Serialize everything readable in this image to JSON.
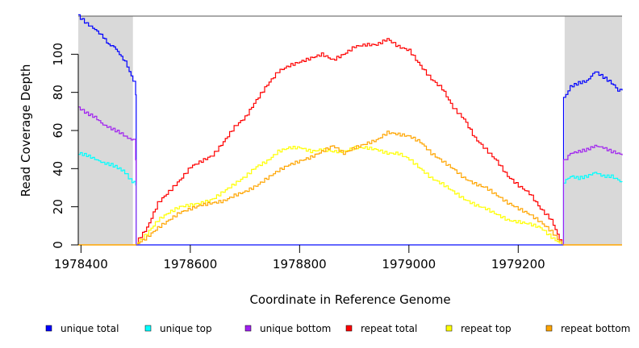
{
  "chart_data": {
    "type": "line",
    "xlabel": "Coordinate in Reference Genome",
    "ylabel": "Read Coverage Depth",
    "xlim": [
      1978395,
      1979390
    ],
    "ylim": [
      0,
      120
    ],
    "x_ticks": [
      1978400,
      1978600,
      1978800,
      1979000,
      1979200
    ],
    "y_ticks": [
      0,
      20,
      40,
      60,
      80,
      100
    ],
    "shaded_regions": [
      [
        1978395,
        1978495
      ],
      [
        1979285,
        1979390
      ]
    ],
    "legend_position": "bottom",
    "series": [
      {
        "name": "unique total",
        "color": "#0000ff",
        "points": [
          [
            1978395,
            120
          ],
          [
            1978410,
            116
          ],
          [
            1978425,
            113
          ],
          [
            1978440,
            109
          ],
          [
            1978450,
            105
          ],
          [
            1978460,
            104
          ],
          [
            1978470,
            100
          ],
          [
            1978480,
            96
          ],
          [
            1978488,
            91
          ],
          [
            1978495,
            86
          ],
          [
            1978500,
            78
          ],
          [
            1978501,
            0
          ],
          [
            1979282,
            0
          ],
          [
            1979283,
            77
          ],
          [
            1979295,
            83
          ],
          [
            1979310,
            85
          ],
          [
            1979325,
            86
          ],
          [
            1979340,
            91
          ],
          [
            1979355,
            88
          ],
          [
            1979370,
            85
          ],
          [
            1979382,
            81
          ],
          [
            1979390,
            81
          ]
        ]
      },
      {
        "name": "unique top",
        "color": "#00ffff",
        "points": [
          [
            1978395,
            48
          ],
          [
            1978410,
            47
          ],
          [
            1978425,
            45
          ],
          [
            1978440,
            43
          ],
          [
            1978455,
            42
          ],
          [
            1978470,
            40
          ],
          [
            1978480,
            38
          ],
          [
            1978490,
            34
          ],
          [
            1978500,
            32
          ],
          [
            1978501,
            0
          ],
          [
            1979282,
            0
          ],
          [
            1979283,
            33
          ],
          [
            1979295,
            36
          ],
          [
            1979310,
            35
          ],
          [
            1979325,
            36
          ],
          [
            1979340,
            38
          ],
          [
            1979355,
            36
          ],
          [
            1979370,
            36
          ],
          [
            1979382,
            34
          ],
          [
            1979390,
            33
          ]
        ]
      },
      {
        "name": "unique bottom",
        "color": "#a020f0",
        "points": [
          [
            1978395,
            72
          ],
          [
            1978410,
            69
          ],
          [
            1978425,
            67
          ],
          [
            1978440,
            63
          ],
          [
            1978455,
            61
          ],
          [
            1978470,
            59
          ],
          [
            1978485,
            56
          ],
          [
            1978495,
            55
          ],
          [
            1978500,
            44
          ],
          [
            1978501,
            0
          ],
          [
            1979282,
            0
          ],
          [
            1979283,
            44
          ],
          [
            1979295,
            48
          ],
          [
            1979310,
            49
          ],
          [
            1979325,
            50
          ],
          [
            1979340,
            52
          ],
          [
            1979355,
            51
          ],
          [
            1979370,
            49
          ],
          [
            1979382,
            48
          ],
          [
            1979390,
            47
          ]
        ]
      },
      {
        "name": "repeat total",
        "color": "#ff0000",
        "points": [
          [
            1978500,
            0
          ],
          [
            1978505,
            3
          ],
          [
            1978520,
            9
          ],
          [
            1978540,
            22
          ],
          [
            1978560,
            28
          ],
          [
            1978580,
            34
          ],
          [
            1978600,
            41
          ],
          [
            1978620,
            44
          ],
          [
            1978640,
            47
          ],
          [
            1978660,
            54
          ],
          [
            1978680,
            62
          ],
          [
            1978700,
            67
          ],
          [
            1978720,
            76
          ],
          [
            1978740,
            84
          ],
          [
            1978760,
            91
          ],
          [
            1978780,
            94
          ],
          [
            1978800,
            96
          ],
          [
            1978820,
            98
          ],
          [
            1978840,
            100
          ],
          [
            1978860,
            97
          ],
          [
            1978880,
            100
          ],
          [
            1978900,
            104
          ],
          [
            1978920,
            105
          ],
          [
            1978940,
            105
          ],
          [
            1978960,
            108
          ],
          [
            1978980,
            104
          ],
          [
            1979000,
            102
          ],
          [
            1979020,
            94
          ],
          [
            1979040,
            87
          ],
          [
            1979060,
            82
          ],
          [
            1979080,
            72
          ],
          [
            1979100,
            66
          ],
          [
            1979120,
            56
          ],
          [
            1979140,
            50
          ],
          [
            1979160,
            44
          ],
          [
            1979180,
            36
          ],
          [
            1979200,
            31
          ],
          [
            1979220,
            27
          ],
          [
            1979240,
            19
          ],
          [
            1979260,
            13
          ],
          [
            1979275,
            3
          ],
          [
            1979280,
            0
          ]
        ]
      },
      {
        "name": "repeat top",
        "color": "#ffff00",
        "points": [
          [
            1978500,
            0
          ],
          [
            1978520,
            6
          ],
          [
            1978540,
            13
          ],
          [
            1978560,
            17
          ],
          [
            1978580,
            20
          ],
          [
            1978600,
            21
          ],
          [
            1978620,
            22
          ],
          [
            1978640,
            24
          ],
          [
            1978660,
            28
          ],
          [
            1978680,
            32
          ],
          [
            1978700,
            36
          ],
          [
            1978720,
            41
          ],
          [
            1978740,
            44
          ],
          [
            1978760,
            49
          ],
          [
            1978780,
            51
          ],
          [
            1978800,
            51
          ],
          [
            1978820,
            49
          ],
          [
            1978840,
            50
          ],
          [
            1978860,
            49
          ],
          [
            1978880,
            49
          ],
          [
            1978900,
            51
          ],
          [
            1978920,
            51
          ],
          [
            1978940,
            50
          ],
          [
            1978960,
            48
          ],
          [
            1978980,
            48
          ],
          [
            1979000,
            45
          ],
          [
            1979020,
            40
          ],
          [
            1979040,
            35
          ],
          [
            1979060,
            32
          ],
          [
            1979080,
            28
          ],
          [
            1979100,
            24
          ],
          [
            1979120,
            21
          ],
          [
            1979140,
            19
          ],
          [
            1979160,
            16
          ],
          [
            1979180,
            13
          ],
          [
            1979200,
            12
          ],
          [
            1979220,
            11
          ],
          [
            1979240,
            9
          ],
          [
            1979260,
            4
          ],
          [
            1979275,
            1
          ],
          [
            1979280,
            0
          ]
        ]
      },
      {
        "name": "repeat bottom",
        "color": "#ffa500",
        "points": [
          [
            1978500,
            0
          ],
          [
            1978520,
            4
          ],
          [
            1978540,
            9
          ],
          [
            1978560,
            13
          ],
          [
            1978580,
            17
          ],
          [
            1978600,
            19
          ],
          [
            1978620,
            21
          ],
          [
            1978640,
            22
          ],
          [
            1978660,
            23
          ],
          [
            1978680,
            26
          ],
          [
            1978700,
            28
          ],
          [
            1978720,
            31
          ],
          [
            1978740,
            35
          ],
          [
            1978760,
            39
          ],
          [
            1978780,
            42
          ],
          [
            1978800,
            44
          ],
          [
            1978820,
            46
          ],
          [
            1978840,
            49
          ],
          [
            1978860,
            52
          ],
          [
            1978880,
            48
          ],
          [
            1978900,
            51
          ],
          [
            1978920,
            53
          ],
          [
            1978940,
            55
          ],
          [
            1978960,
            59
          ],
          [
            1978980,
            58
          ],
          [
            1979000,
            57
          ],
          [
            1979020,
            54
          ],
          [
            1979040,
            48
          ],
          [
            1979060,
            44
          ],
          [
            1979080,
            40
          ],
          [
            1979100,
            35
          ],
          [
            1979120,
            32
          ],
          [
            1979140,
            30
          ],
          [
            1979160,
            26
          ],
          [
            1979180,
            22
          ],
          [
            1979200,
            19
          ],
          [
            1979220,
            16
          ],
          [
            1979240,
            12
          ],
          [
            1979260,
            7
          ],
          [
            1979275,
            2
          ],
          [
            1979280,
            0
          ]
        ]
      }
    ]
  }
}
